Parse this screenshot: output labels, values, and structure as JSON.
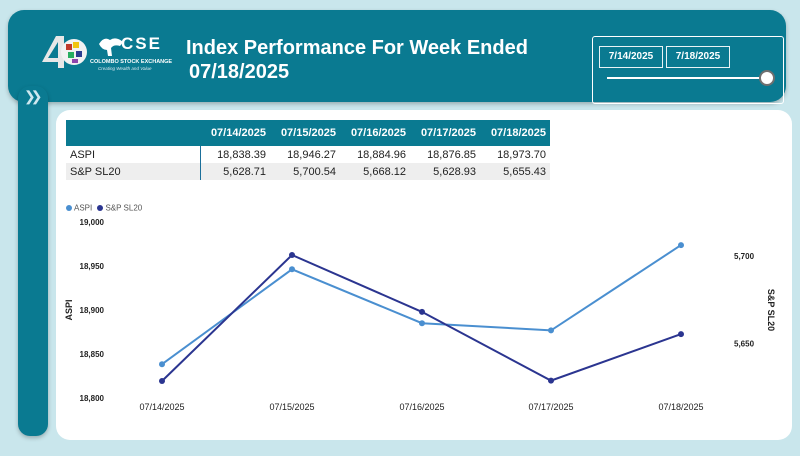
{
  "header": {
    "logo": {
      "abbr": "CSE",
      "name": "COLOMBO STOCK EXCHANGE",
      "tagline": "Creating Wealth and Value"
    },
    "title_line1": "Index Performance For Week Ended",
    "title_line2": "07/18/2025"
  },
  "slicer": {
    "start_date": "7/14/2025",
    "end_date": "7/18/2025",
    "position": 1.0
  },
  "table": {
    "headers": [
      "",
      "07/14/2025",
      "07/15/2025",
      "07/16/2025",
      "07/17/2025",
      "07/18/2025"
    ],
    "rows": [
      {
        "label": "ASPI",
        "values": [
          "18,838.39",
          "18,946.27",
          "18,884.96",
          "18,876.85",
          "18,973.70"
        ]
      },
      {
        "label": "S&P SL20",
        "values": [
          "5,628.71",
          "5,700.54",
          "5,668.12",
          "5,628.93",
          "5,655.43"
        ]
      }
    ]
  },
  "chart_data": {
    "type": "line",
    "categories": [
      "07/14/2025",
      "07/15/2025",
      "07/16/2025",
      "07/17/2025",
      "07/18/2025"
    ],
    "series": [
      {
        "name": "ASPI",
        "values": [
          18838.39,
          18946.27,
          18884.96,
          18876.85,
          18973.7
        ],
        "color": "#4a8fd0",
        "axis": "left"
      },
      {
        "name": "S&P SL20",
        "values": [
          5628.71,
          5700.54,
          5668.12,
          5628.93,
          5655.43
        ],
        "color": "#2b3590",
        "axis": "right"
      }
    ],
    "ylabel_left": "ASPI",
    "ylabel_right": "S&P SL20",
    "left_ticks": [
      "19,000",
      "18,950",
      "18,900",
      "18,850",
      "18,800"
    ],
    "left_tick_values": [
      19000,
      18950,
      18900,
      18850,
      18800
    ],
    "right_ticks": [
      "5,700",
      "5,650"
    ],
    "right_tick_values": [
      5700,
      5650
    ],
    "ylim_left": [
      18800,
      19000
    ],
    "ylim_right": [
      5628.71,
      5700.54
    ],
    "legend": "top-left"
  }
}
